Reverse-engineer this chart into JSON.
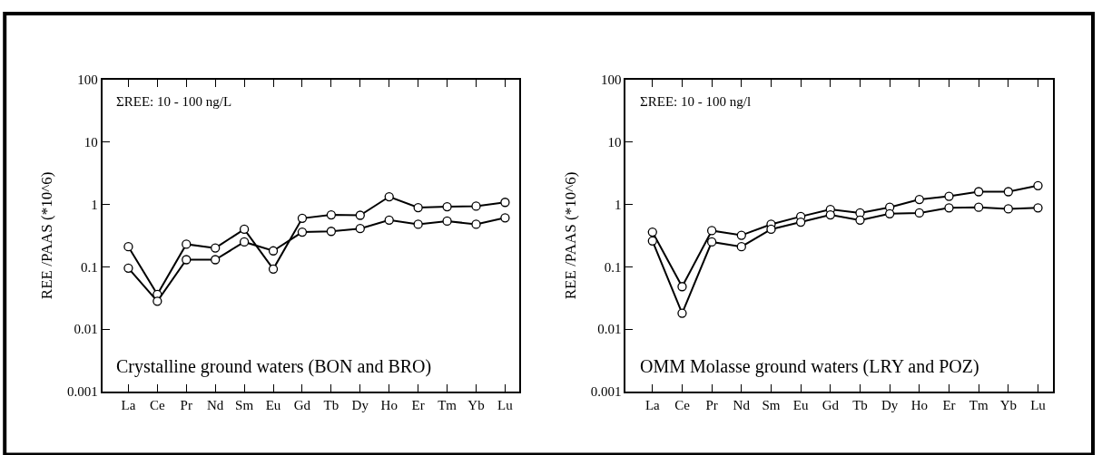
{
  "chart_data": [
    {
      "type": "line",
      "ylabel": "REE /PAAS (*10^6)",
      "annotations": [
        "ΣREE: 10 - 100 ng/L",
        "Crystalline ground waters (BON and BRO)"
      ],
      "categories": [
        "La",
        "Ce",
        "Pr",
        "Nd",
        "Sm",
        "Eu",
        "Gd",
        "Tb",
        "Dy",
        "Ho",
        "Er",
        "Tm",
        "Yb",
        "Lu"
      ],
      "log": true,
      "ylim": [
        0.001,
        100
      ],
      "yticks": [
        0.001,
        0.01,
        0.1,
        1,
        10,
        100
      ],
      "marker": "circle",
      "series": [
        {
          "color": "#000000",
          "values": [
            0.21,
            0.036,
            0.23,
            0.2,
            0.4,
            0.092,
            0.6,
            0.68,
            0.67,
            1.33,
            0.89,
            0.92,
            0.94,
            1.08
          ]
        },
        {
          "color": "#000000",
          "values": [
            0.095,
            0.028,
            0.13,
            0.13,
            0.25,
            0.18,
            0.36,
            0.37,
            0.41,
            0.56,
            0.48,
            0.54,
            0.48,
            0.61
          ]
        }
      ]
    },
    {
      "type": "line",
      "ylabel": "REE /PAAS (*10^6)",
      "annotations": [
        "ΣREE: 10 - 100 ng/l",
        "OMM Molasse ground waters (LRY and POZ)"
      ],
      "categories": [
        "La",
        "Ce",
        "Pr",
        "Nd",
        "Sm",
        "Eu",
        "Gd",
        "Tb",
        "Dy",
        "Ho",
        "Er",
        "Tm",
        "Yb",
        "Lu"
      ],
      "log": true,
      "ylim": [
        0.001,
        100
      ],
      "yticks": [
        0.001,
        0.01,
        0.1,
        1,
        10,
        100
      ],
      "marker": "circle",
      "series": [
        {
          "color": "#000000",
          "values": [
            0.36,
            0.048,
            0.38,
            0.32,
            0.48,
            0.64,
            0.83,
            0.73,
            0.9,
            1.2,
            1.35,
            1.6,
            1.6,
            2.0
          ]
        },
        {
          "color": "#000000",
          "values": [
            0.26,
            0.018,
            0.25,
            0.21,
            0.4,
            0.52,
            0.68,
            0.56,
            0.71,
            0.73,
            0.88,
            0.9,
            0.85,
            0.88
          ]
        }
      ]
    }
  ]
}
